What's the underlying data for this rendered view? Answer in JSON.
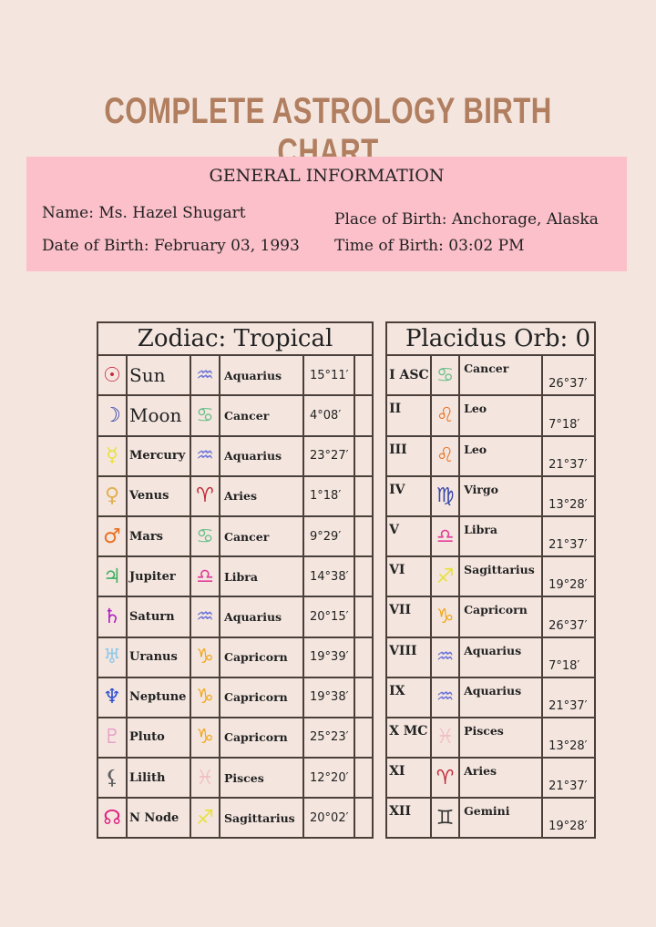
{
  "title": "COMPLETE ASTROLOGY BIRTH CHART",
  "general": {
    "heading": "GENERAL INFORMATION",
    "name": "Name: Ms. Hazel Shugart",
    "dob": "Date of Birth: February 03, 1993",
    "pob": "Place of Birth: Anchorage, Alaska",
    "tob": "Time of Birth: 03:02 PM"
  },
  "zodiac_header": "Zodiac: Tropical",
  "placidus_header": "Placidus Orb: 0",
  "planets": [
    {
      "glyph": "☉",
      "glyph_color": "#c8283c",
      "icon": "sun-icon",
      "name": "Sun",
      "sign_glyph": "♒",
      "sign_color": "#6a73d8",
      "sign": "Aquarius",
      "degree": "15°11′"
    },
    {
      "glyph": "☽",
      "glyph_color": "#2b3aa8",
      "icon": "moon-icon",
      "name": "Moon",
      "sign_glyph": "♋",
      "sign_color": "#6cc08a",
      "sign": "Cancer",
      "degree": "4°08′"
    },
    {
      "glyph": "☿",
      "glyph_color": "#e8e040",
      "icon": "mercury-icon",
      "name": "Mercury",
      "sign_glyph": "♒",
      "sign_color": "#6a73d8",
      "sign": "Aquarius",
      "degree": "23°27′"
    },
    {
      "glyph": "♀",
      "glyph_color": "#e0b050",
      "icon": "venus-icon",
      "name": "Venus",
      "sign_glyph": "♈",
      "sign_color": "#c02838",
      "sign": "Aries",
      "degree": "1°18′"
    },
    {
      "glyph": "♂",
      "glyph_color": "#e87020",
      "icon": "mars-icon",
      "name": "Mars",
      "sign_glyph": "♋",
      "sign_color": "#6cc08a",
      "sign": "Cancer",
      "degree": "9°29′"
    },
    {
      "glyph": "♃",
      "glyph_color": "#40b060",
      "icon": "jupiter-icon",
      "name": "Jupiter",
      "sign_glyph": "♎",
      "sign_color": "#e0409a",
      "sign": "Libra",
      "degree": "14°38′"
    },
    {
      "glyph": "♄",
      "glyph_color": "#b020c0",
      "icon": "saturn-icon",
      "name": "Saturn",
      "sign_glyph": "♒",
      "sign_color": "#6a73d8",
      "sign": "Aquarius",
      "degree": "20°15′"
    },
    {
      "glyph": "♅",
      "glyph_color": "#90c8e8",
      "icon": "uranus-icon",
      "name": "Uranus",
      "sign_glyph": "♑",
      "sign_color": "#f0a820",
      "sign": "Capricorn",
      "degree": "19°39′"
    },
    {
      "glyph": "♆",
      "glyph_color": "#3050d0",
      "icon": "neptune-icon",
      "name": "Neptune",
      "sign_glyph": "♑",
      "sign_color": "#f0a820",
      "sign": "Capricorn",
      "degree": "19°38′"
    },
    {
      "glyph": "♇",
      "glyph_color": "#e8a0c8",
      "icon": "pluto-icon",
      "name": "Pluto",
      "sign_glyph": "♑",
      "sign_color": "#f0a820",
      "sign": "Capricorn",
      "degree": "25°23′"
    },
    {
      "glyph": "⚸",
      "glyph_color": "#606060",
      "icon": "lilith-icon",
      "name": "Lilith",
      "sign_glyph": "♓",
      "sign_color": "#f0c0c8",
      "sign": "Pisces",
      "degree": "12°20′"
    },
    {
      "glyph": "☊",
      "glyph_color": "#e02080",
      "icon": "north-node-icon",
      "name": "N Node",
      "sign_glyph": "♐",
      "sign_color": "#e8e040",
      "sign": "Sagittarius",
      "degree": "20°02′"
    }
  ],
  "houses": [
    {
      "house": "I ASC",
      "sign_glyph": "♋",
      "sign_color": "#6cc08a",
      "sign": "Cancer",
      "degree": "26°37′"
    },
    {
      "house": "II",
      "sign_glyph": "♌",
      "sign_color": "#e87830",
      "sign": "Leo",
      "degree": "7°18′"
    },
    {
      "house": "III",
      "sign_glyph": "♌",
      "sign_color": "#e87830",
      "sign": "Leo",
      "degree": "21°37′"
    },
    {
      "house": "IV",
      "sign_glyph": "♍",
      "sign_color": "#3a48a8",
      "sign": "Virgo",
      "degree": "13°28′"
    },
    {
      "house": "V",
      "sign_glyph": "♎",
      "sign_color": "#e0409a",
      "sign": "Libra",
      "degree": "21°37′"
    },
    {
      "house": "VI",
      "sign_glyph": "♐",
      "sign_color": "#e8e040",
      "sign": "Sagittarius",
      "degree": "19°28′"
    },
    {
      "house": "VII",
      "sign_glyph": "♑",
      "sign_color": "#f0a820",
      "sign": "Capricorn",
      "degree": "26°37′"
    },
    {
      "house": "VIII",
      "sign_glyph": "♒",
      "sign_color": "#6a73d8",
      "sign": "Aquarius",
      "degree": "7°18′"
    },
    {
      "house": "IX",
      "sign_glyph": "♒",
      "sign_color": "#6a73d8",
      "sign": "Aquarius",
      "degree": "21°37′"
    },
    {
      "house": "X MC",
      "sign_glyph": "♓",
      "sign_color": "#f0c0c8",
      "sign": "Pisces",
      "degree": "13°28′"
    },
    {
      "house": "XI",
      "sign_glyph": "♈",
      "sign_color": "#c02838",
      "sign": "Aries",
      "degree": "21°37′"
    },
    {
      "house": "XII",
      "sign_glyph": "♊",
      "sign_color": "#333333",
      "sign": "Gemini",
      "degree": "19°28′"
    }
  ]
}
